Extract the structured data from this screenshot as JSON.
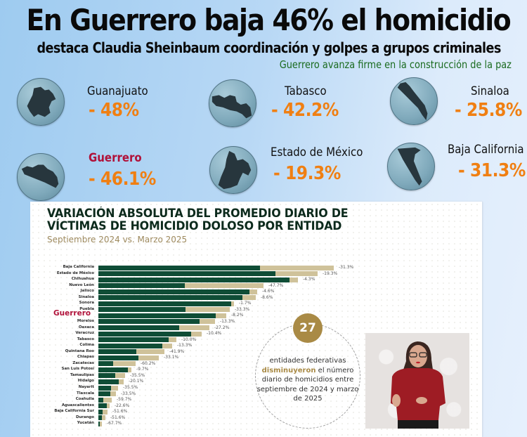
{
  "header": {
    "headline": "En Guerrero baja 46% el homicidio",
    "subhead": "destaca Claudia Sheinbaum coordinación y golpes a grupos criminales",
    "tagline": "Guerrero avanza firme en la construcción de la paz"
  },
  "highlights": [
    {
      "state": "Guanajuato",
      "pct": "- 48%",
      "icon": "guanajuato-map-icon"
    },
    {
      "state": "Tabasco",
      "pct": "- 42.2%",
      "icon": "tabasco-map-icon"
    },
    {
      "state": "Sinaloa",
      "pct": "- 25.8%",
      "icon": "sinaloa-map-icon"
    },
    {
      "state": "Guerrero",
      "pct": "- 46.1%",
      "icon": "guerrero-map-icon"
    },
    {
      "state": "Estado de México",
      "pct": "- 19.3%",
      "icon": "estado-de-mexico-map-icon"
    },
    {
      "state": "Baja California",
      "pct": "- 31.3%",
      "icon": "baja-california-map-icon"
    }
  ],
  "card": {
    "title_line1": "VARIACIÓN ABSOLUTA DEL PROMEDIO DIARIO DE",
    "title_line2": "VÍCTIMAS DE HOMICIDIO DOLOSO POR ENTIDAD",
    "subtitle": "Septiembre 2024 vs. Marzo 2025",
    "callout": {
      "number": "27",
      "text_before": "entidades federativas",
      "text_emphasis": "disminuyeron",
      "text_after": "el número diario de homicidios entre septiembre de 2024 y marzo de 2025"
    }
  },
  "colors": {
    "bar_after": "#0f4d36",
    "bar_before": "#cfc29a",
    "accent_orange": "#f07f12",
    "highlight_red": "#b0123a",
    "gold": "#a98a45",
    "tagline_green": "#1a6b1f"
  },
  "chart_data": {
    "type": "bar",
    "orientation": "horizontal",
    "title": "VARIACIÓN ABSOLUTA DEL PROMEDIO DIARIO DE VÍCTIMAS DE HOMICIDIO DOLOSO POR ENTIDAD",
    "subtitle": "Septiembre 2024 vs. Marzo 2025",
    "xlabel": "",
    "ylabel": "",
    "grid": false,
    "legend": "none",
    "categories": [
      "Baja California",
      "Estado de México",
      "Chihuahua",
      "Nuevo León",
      "Jalisco",
      "Sinaloa",
      "Sonora",
      "Puebla",
      "Guerrero",
      "Morelos",
      "Oaxaca",
      "Veracruz",
      "Tabasco",
      "Colima",
      "Quintana Roo",
      "Chiapas",
      "Zacatecas",
      "San Luis Potosí",
      "Tamaulipas",
      "Hidalgo",
      "Nayarit",
      "Tlaxcala",
      "Coahuila",
      "Aguascalientes",
      "Baja California Sur",
      "Durango",
      "Yucatán"
    ],
    "series": [
      {
        "name": "Septiembre 2024 (relative bar length, px)",
        "values": [
          335,
          312,
          284,
          235,
          226,
          224,
          193,
          187,
          182,
          166,
          158,
          147,
          111,
          105,
          94,
          86,
          53,
          47,
          38,
          36,
          28,
          25,
          19,
          16,
          13,
          10,
          5
        ]
      },
      {
        "name": "Marzo 2025 (relative bar length, px)",
        "values": [
          230,
          252,
          272,
          123,
          215,
          205,
          189,
          124,
          167,
          144,
          115,
          132,
          100,
          91,
          54,
          57,
          21,
          42,
          24,
          29,
          18,
          17,
          7,
          12,
          6,
          5,
          2
        ]
      },
      {
        "name": "Variación %",
        "values": [
          -31.3,
          -19.3,
          -4.3,
          -47.7,
          -4.6,
          -8.6,
          -1.7,
          -33.3,
          -8.2,
          -13.3,
          -27.2,
          -10.4,
          -10.0,
          -13.3,
          -41.9,
          -33.1,
          -60.2,
          -9.7,
          -35.5,
          -20.1,
          -35.5,
          -33.5,
          -59.7,
          -22.6,
          -51.6,
          -51.6,
          -67.7
        ]
      }
    ],
    "value_labels": [
      "-31.3%",
      "-19.3%",
      "-4.3%",
      "-47.7%",
      "-4.6%",
      "-8.6%",
      "-1.7%",
      "-33.3%",
      "-8.2%",
      "-13.3%",
      "-27.2%",
      "-10.4%",
      "-10.0%",
      "-13.3%",
      "-41.9%",
      "-33.1%",
      "-60.2%",
      "-9.7%",
      "-35.5%",
      "-20.1%",
      "-35.5%",
      "-33.5%",
      "-59.7%",
      "-22.6%",
      "-51.6%",
      "-51.6%",
      "-67.7%"
    ],
    "highlighted_category": "Guerrero"
  }
}
